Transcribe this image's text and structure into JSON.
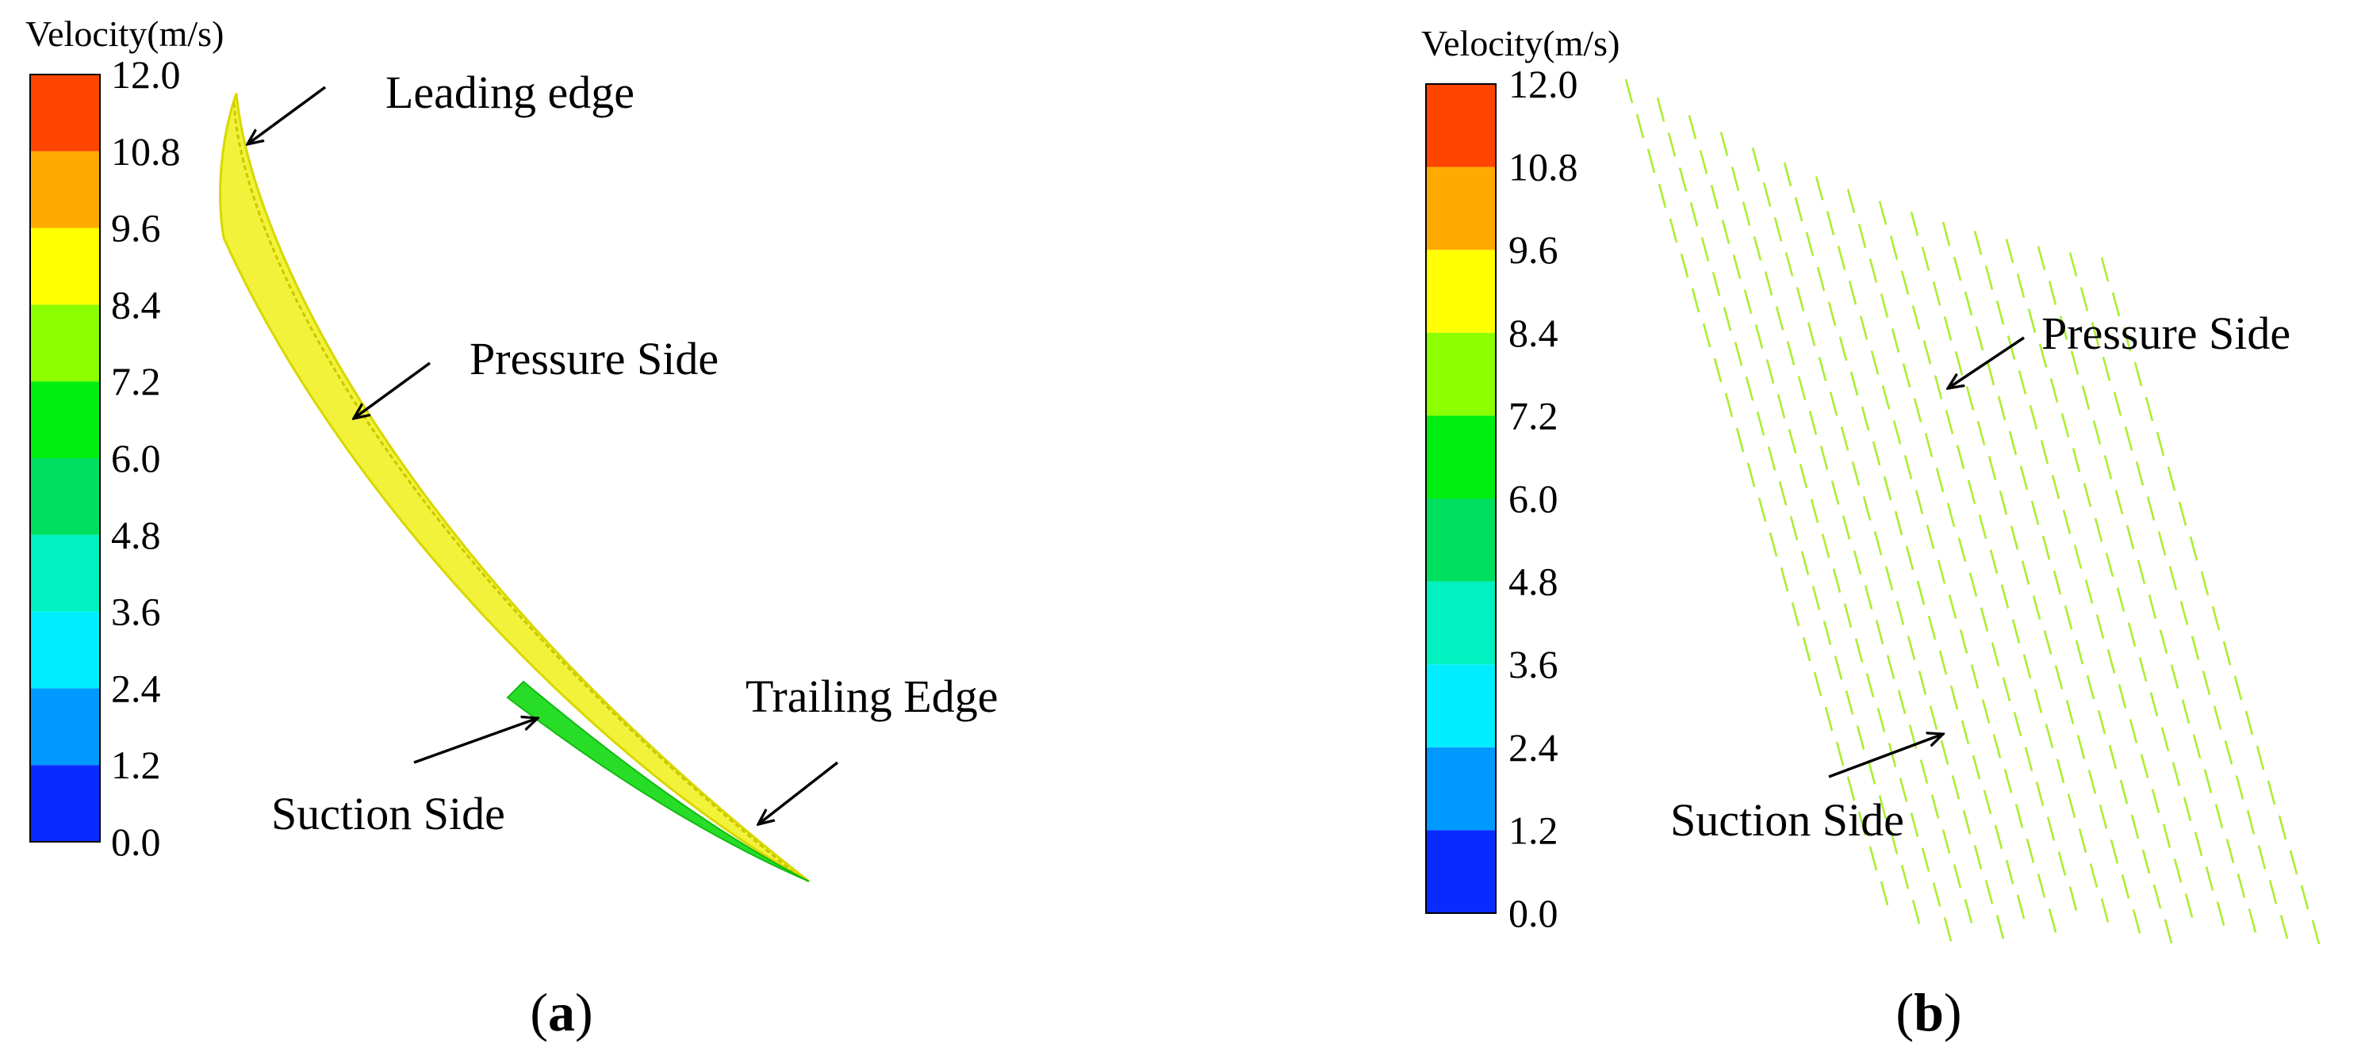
{
  "colors": {
    "bands_bottom_to_top": [
      "#0a2bff",
      "#0099ff",
      "#00eeff",
      "#00f2c0",
      "#00e060",
      "#00ee10",
      "#8cff00",
      "#ffff00",
      "#ffaa00",
      "#ff4400"
    ],
    "blade_yellow": "#eeee00",
    "blade_green": "#22dd22",
    "vector_color": "#aaee33",
    "arrow": "#000000"
  },
  "panel_a": {
    "colorbar_title": "Velocity(m/s)",
    "colorbar_ticks": [
      "12.0",
      "10.8",
      "9.6",
      "8.4",
      "7.2",
      "6.0",
      "4.8",
      "3.6",
      "2.4",
      "1.2",
      "0.0"
    ],
    "annotations": {
      "leading_edge": "Leading edge",
      "pressure_side": "Pressure Side",
      "suction_side": "Suction Side",
      "trailing_edge": "Trailing Edge"
    },
    "label_open": "(",
    "label_letter": "a",
    "label_close": ")"
  },
  "panel_b": {
    "colorbar_title": "Velocity(m/s)",
    "colorbar_ticks": [
      "12.0",
      "10.8",
      "9.6",
      "8.4",
      "7.2",
      "6.0",
      "4.8",
      "3.6",
      "2.4",
      "1.2",
      "0.0"
    ],
    "annotations": {
      "pressure_side": "Pressure Side",
      "suction_side": "Suction Side"
    },
    "label_open": "(",
    "label_letter": "b",
    "label_close": ")"
  }
}
